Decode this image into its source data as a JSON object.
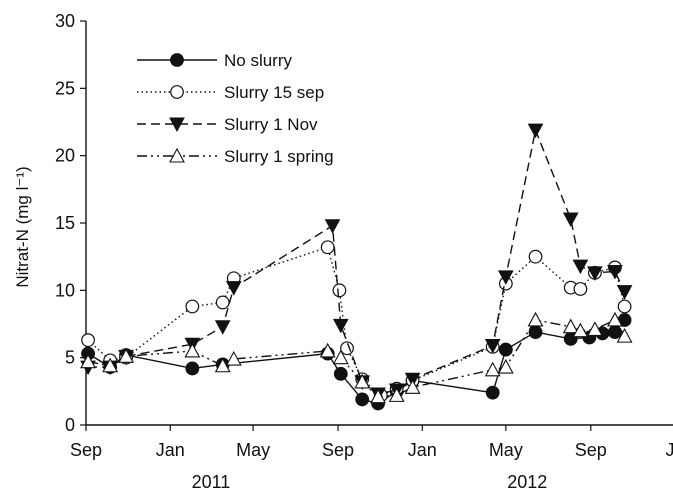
{
  "chart_data": {
    "type": "line",
    "title": "",
    "xlabel": "",
    "ylabel": "Nitrat-N (mg l⁻¹)",
    "ylim": [
      0,
      30
    ],
    "y_ticks": [
      0,
      5,
      10,
      15,
      20,
      25,
      30
    ],
    "x_axis": {
      "start": "2010-09-01",
      "end": "2013-01-01",
      "ticks": [
        {
          "date": "2010-09-01",
          "label": "Sep"
        },
        {
          "date": "2011-01-01",
          "label": "Jan"
        },
        {
          "date": "2011-05-01",
          "label": "May"
        },
        {
          "date": "2011-09-01",
          "label": "Sep"
        },
        {
          "date": "2012-01-01",
          "label": "Jan"
        },
        {
          "date": "2012-05-01",
          "label": "May"
        },
        {
          "date": "2012-09-01",
          "label": "Sep"
        },
        {
          "date": "2013-01-01",
          "label": "Ja"
        }
      ],
      "year_labels": [
        {
          "date": "2011-03-01",
          "label": "2011"
        },
        {
          "date": "2012-06-01",
          "label": "2012"
        }
      ]
    },
    "legend_position": "top-left",
    "grid": false,
    "series": [
      {
        "name": "No slurry",
        "line_style": "solid",
        "marker": "filled-circle",
        "color": "#111111",
        "x": [
          "2010-09-04",
          "2010-10-06",
          "2010-10-29",
          "2011-02-02",
          "2011-03-18",
          "2011-08-17",
          "2011-09-05",
          "2011-10-06",
          "2011-10-29",
          "2011-11-25",
          "2011-12-18",
          "2012-04-12",
          "2012-05-01",
          "2012-06-13",
          "2012-08-03",
          "2012-08-30",
          "2012-09-18",
          "2012-10-06",
          "2012-10-20"
        ],
        "values": [
          5.3,
          4.3,
          5.2,
          4.2,
          4.5,
          5.3,
          3.8,
          1.9,
          1.6,
          2.5,
          3.3,
          2.4,
          5.6,
          6.9,
          6.4,
          6.5,
          6.8,
          6.9,
          7.8
        ]
      },
      {
        "name": "Slurry 15 sep",
        "line_style": "dotted",
        "marker": "open-circle",
        "color": "#111111",
        "x": [
          "2010-09-04",
          "2010-10-06",
          "2010-10-29",
          "2011-02-02",
          "2011-03-18",
          "2011-04-03",
          "2011-08-17",
          "2011-09-03",
          "2011-09-14",
          "2011-10-06",
          "2011-11-02",
          "2011-11-25",
          "2011-12-18",
          "2012-04-12",
          "2012-05-01",
          "2012-06-13",
          "2012-08-03",
          "2012-08-17",
          "2012-09-07",
          "2012-10-06",
          "2012-10-20"
        ],
        "values": [
          6.3,
          4.8,
          5.0,
          8.8,
          9.1,
          10.9,
          13.2,
          10.0,
          5.7,
          3.4,
          2.2,
          2.7,
          3.3,
          5.8,
          10.5,
          12.5,
          10.2,
          10.1,
          11.3,
          11.7,
          8.8
        ]
      },
      {
        "name": "Slurry 1 Nov",
        "line_style": "dashed",
        "marker": "filled-triangle-down",
        "color": "#111111",
        "x": [
          "2010-09-04",
          "2010-10-06",
          "2010-10-29",
          "2011-02-02",
          "2011-03-18",
          "2011-04-03",
          "2011-08-24",
          "2011-09-05",
          "2011-10-06",
          "2011-10-29",
          "2011-11-25",
          "2011-12-18",
          "2012-04-12",
          "2012-05-01",
          "2012-06-13",
          "2012-08-03",
          "2012-08-17",
          "2012-09-07",
          "2012-10-06",
          "2012-10-20"
        ],
        "values": [
          4.3,
          4.3,
          5.1,
          6.0,
          7.3,
          10.2,
          14.8,
          7.4,
          3.2,
          2.3,
          2.6,
          3.4,
          5.9,
          11.0,
          21.9,
          15.3,
          11.8,
          11.3,
          11.4,
          9.9
        ]
      },
      {
        "name": "Slurry 1 spring",
        "line_style": "dash-dot-dot",
        "marker": "open-triangle-up",
        "color": "#111111",
        "x": [
          "2010-09-04",
          "2010-10-06",
          "2010-10-29",
          "2011-02-02",
          "2011-03-18",
          "2011-04-03",
          "2011-08-17",
          "2011-09-05",
          "2011-10-06",
          "2011-10-29",
          "2011-11-25",
          "2011-12-18",
          "2012-04-12",
          "2012-05-01",
          "2012-06-13",
          "2012-08-03",
          "2012-08-17",
          "2012-09-07",
          "2012-10-06",
          "2012-10-20"
        ],
        "values": [
          4.7,
          4.4,
          5.1,
          5.5,
          4.4,
          4.9,
          5.5,
          5.0,
          3.2,
          2.1,
          2.2,
          2.8,
          4.1,
          4.3,
          7.8,
          7.3,
          7.0,
          7.1,
          7.8,
          6.6
        ]
      }
    ]
  }
}
